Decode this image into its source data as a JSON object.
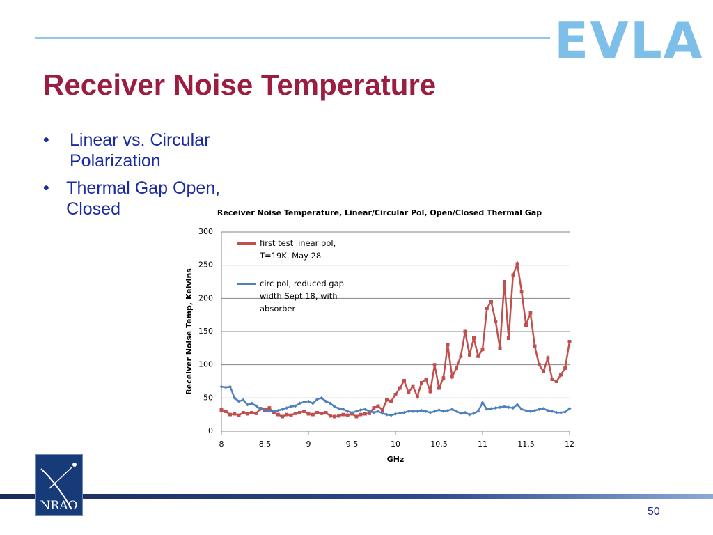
{
  "slide": {
    "logo": "EVLA",
    "title": "Receiver Noise Temperature",
    "bullets": [
      "Linear vs. Circular Polarization",
      "Thermal Gap Open, Closed"
    ],
    "footer_logo": "NRAO",
    "page_number": "50"
  },
  "chart_data": {
    "type": "line",
    "title": "Receiver Noise Temperature, Linear/Circular Pol, Open/Closed Thermal Gap",
    "x_label": "GHz",
    "y_label": "Receiver Noise Temp, Kelvins",
    "x": [
      8,
      8.05,
      8.1,
      8.15,
      8.2,
      8.25,
      8.3,
      8.35,
      8.4,
      8.45,
      8.5,
      8.55,
      8.6,
      8.65,
      8.7,
      8.75,
      8.8,
      8.85,
      8.9,
      8.95,
      9,
      9.05,
      9.1,
      9.15,
      9.2,
      9.25,
      9.3,
      9.35,
      9.4,
      9.45,
      9.5,
      9.55,
      9.6,
      9.65,
      9.7,
      9.75,
      9.8,
      9.85,
      9.9,
      9.95,
      10,
      10.05,
      10.1,
      10.15,
      10.2,
      10.25,
      10.3,
      10.35,
      10.4,
      10.45,
      10.5,
      10.55,
      10.6,
      10.65,
      10.7,
      10.75,
      10.8,
      10.85,
      10.9,
      10.95,
      11,
      11.05,
      11.1,
      11.15,
      11.2,
      11.25,
      11.3,
      11.35,
      11.4,
      11.45,
      11.5,
      11.55,
      11.6,
      11.65,
      11.7,
      11.75,
      11.8,
      11.85,
      11.9,
      11.95,
      12
    ],
    "series": [
      {
        "name": "first test linear pol, T=19K, May 28",
        "color": "#c0504d",
        "values": [
          32,
          30,
          25,
          26,
          24,
          28,
          26,
          28,
          27,
          34,
          32,
          35,
          28,
          25,
          22,
          25,
          24,
          27,
          28,
          30,
          26,
          25,
          28,
          27,
          28,
          23,
          22,
          23,
          25,
          24,
          26,
          22,
          25,
          26,
          27,
          35,
          38,
          32,
          47,
          45,
          55,
          65,
          76,
          58,
          68,
          52,
          73,
          78,
          60,
          100,
          65,
          80,
          130,
          82,
          95,
          113,
          150,
          115,
          140,
          113,
          123,
          185,
          195,
          165,
          125,
          225,
          140,
          235,
          252,
          210,
          160,
          178,
          128,
          100,
          90,
          110,
          78,
          75,
          85,
          95,
          135
        ]
      },
      {
        "name": "circ pol, reduced gap width Sept 18, with absorber",
        "color": "#4f81bd",
        "values": [
          67,
          66,
          67,
          50,
          45,
          47,
          40,
          42,
          38,
          33,
          32,
          30,
          30,
          31,
          33,
          35,
          37,
          38,
          42,
          44,
          45,
          42,
          48,
          50,
          45,
          42,
          37,
          34,
          33,
          30,
          28,
          30,
          32,
          33,
          30,
          28,
          30,
          27,
          25,
          24,
          26,
          27,
          28,
          30,
          30,
          30,
          31,
          30,
          28,
          30,
          32,
          30,
          31,
          33,
          30,
          27,
          28,
          25,
          27,
          30,
          43,
          33,
          34,
          35,
          36,
          37,
          36,
          35,
          40,
          33,
          31,
          30,
          31,
          33,
          34,
          31,
          30,
          28,
          28,
          29,
          34
        ]
      }
    ],
    "xlim": [
      8,
      12
    ],
    "xticks": [
      8,
      8.5,
      9,
      9.5,
      10,
      10.5,
      11,
      11.5,
      12
    ],
    "ylim": [
      0,
      300
    ],
    "yticks": [
      0,
      50,
      100,
      150,
      200,
      250,
      300
    ],
    "grid": true
  }
}
